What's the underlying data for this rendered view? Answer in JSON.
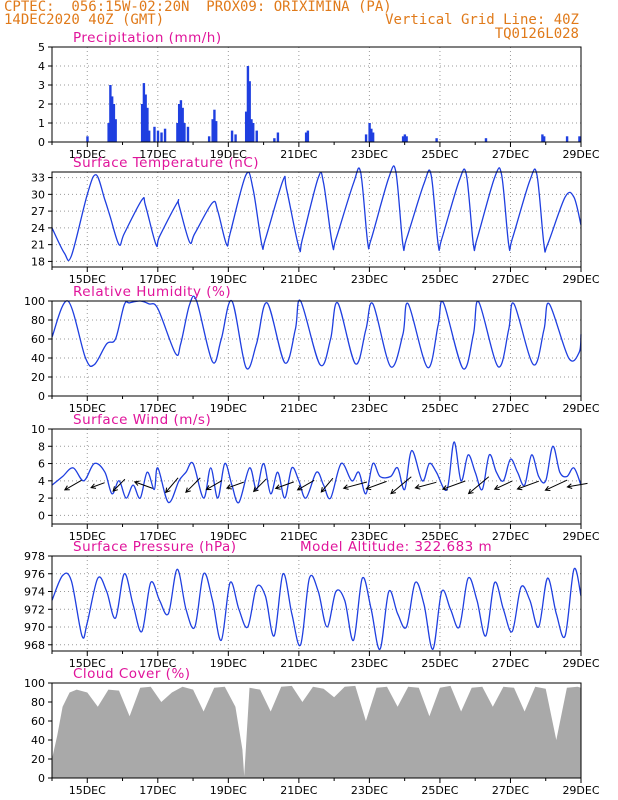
{
  "header": {
    "line1": "CPTEC:  056:15W-02:20N  PROX09: ORIXIMINA (PA)",
    "line2": "14DEC2020 40Z (GMT)",
    "right2": "Vertical Grid Line: 40Z",
    "right3": "TQ0126L028"
  },
  "colors": {
    "header": "#e07a1a",
    "title": "#e0149b",
    "line": "#1f3fe0",
    "cloud": "#a9a9a9",
    "wind_arrow": "#000000"
  },
  "x_axis": {
    "labels": [
      "15DEC",
      "17DEC",
      "19DEC",
      "21DEC",
      "23DEC",
      "25DEC",
      "27DEC",
      "29DEC"
    ],
    "range_days": [
      14.0,
      29.0
    ]
  },
  "chart_data": [
    {
      "id": "precip",
      "type": "bar",
      "title": "Precipitation (mm/h)",
      "ylim": [
        0,
        5
      ],
      "yticks": [
        0,
        1,
        2,
        3,
        4,
        5
      ],
      "grid": true,
      "x_unit": "day of Dec 2020 (14.0 = 14DEC 00Z)",
      "x": [
        15.0,
        15.6,
        15.65,
        15.7,
        15.75,
        15.8,
        16.55,
        16.6,
        16.65,
        16.7,
        16.75,
        16.9,
        17.0,
        17.1,
        17.2,
        17.55,
        17.6,
        17.65,
        17.7,
        17.75,
        17.85,
        18.45,
        18.55,
        18.6,
        18.65,
        19.1,
        19.2,
        19.5,
        19.55,
        19.6,
        19.65,
        19.7,
        19.8,
        20.3,
        20.4,
        21.2,
        21.25,
        22.9,
        23.0,
        23.05,
        23.1,
        23.95,
        24.0,
        24.05,
        24.9,
        26.3,
        27.9,
        27.95,
        28.6,
        28.95
      ],
      "values": [
        0.3,
        1.0,
        3.0,
        2.4,
        2.0,
        1.2,
        2.0,
        3.1,
        2.5,
        1.8,
        0.6,
        0.8,
        0.6,
        0.5,
        0.7,
        1.0,
        2.0,
        2.2,
        1.8,
        1.0,
        0.8,
        0.3,
        1.2,
        1.7,
        1.1,
        0.6,
        0.4,
        1.6,
        4.0,
        3.2,
        1.2,
        1.0,
        0.6,
        0.2,
        0.5,
        0.5,
        0.6,
        0.4,
        1.0,
        0.7,
        0.5,
        0.3,
        0.4,
        0.3,
        0.2,
        0.2,
        0.4,
        0.3,
        0.3,
        0.3
      ]
    },
    {
      "id": "temp",
      "type": "line",
      "title": "Surface Temperature (nC)",
      "ylim": [
        17,
        34
      ],
      "yticks": [
        18,
        21,
        24,
        27,
        30,
        33
      ],
      "grid": true,
      "x": [
        14.0,
        14.35,
        14.55,
        15.0,
        15.25,
        15.5,
        15.65,
        15.9,
        16.05,
        16.55,
        16.65,
        16.95,
        17.05,
        17.55,
        17.6,
        17.9,
        18.05,
        18.55,
        18.7,
        18.95,
        19.05,
        19.5,
        19.7,
        19.95,
        20.05,
        20.55,
        20.65,
        21.0,
        21.1,
        21.55,
        21.7,
        21.95,
        22.05,
        22.55,
        22.75,
        22.95,
        23.05,
        23.55,
        23.75,
        23.95,
        24.05,
        24.55,
        24.75,
        24.95,
        25.05,
        25.55,
        25.75,
        25.95,
        26.05,
        26.55,
        26.75,
        26.95,
        27.05,
        27.55,
        27.75,
        27.95,
        28.05,
        28.55,
        28.8,
        29.0
      ],
      "values": [
        24,
        19.5,
        19,
        30,
        33.5,
        29,
        26,
        21,
        23,
        29,
        28,
        21,
        22.5,
        28.5,
        28,
        21.5,
        23,
        28.5,
        27,
        21,
        23,
        33.5,
        31,
        21,
        22,
        32.5,
        31,
        20.5,
        22,
        33,
        32,
        21,
        22,
        32,
        34,
        21.5,
        22,
        33,
        34,
        21,
        22,
        32,
        33.5,
        21,
        22,
        32.5,
        33.5,
        21,
        22,
        33,
        33.5,
        21,
        22,
        32.5,
        33.5,
        21,
        21,
        29.5,
        29.5,
        24.5
      ]
    },
    {
      "id": "rh",
      "type": "line",
      "title": "Relative Humidity (%)",
      "ylim": [
        0,
        100
      ],
      "yticks": [
        0,
        20,
        40,
        60,
        80,
        100
      ],
      "grid": true,
      "x": [
        14.0,
        14.45,
        14.95,
        15.2,
        15.55,
        15.8,
        16.05,
        16.2,
        16.5,
        16.75,
        17.0,
        17.5,
        17.65,
        17.9,
        18.1,
        18.55,
        18.8,
        19.1,
        19.5,
        19.8,
        20.1,
        20.6,
        20.9,
        21.05,
        21.6,
        21.9,
        22.1,
        22.6,
        22.9,
        23.1,
        23.6,
        23.95,
        24.1,
        24.65,
        24.95,
        25.1,
        25.65,
        25.95,
        26.1,
        26.65,
        26.95,
        27.1,
        27.65,
        27.95,
        28.1,
        28.65,
        28.95,
        29.0
      ],
      "values": [
        62,
        100,
        40,
        33,
        55,
        60,
        96,
        98,
        100,
        97,
        92,
        45,
        55,
        96,
        100,
        36,
        60,
        100,
        30,
        55,
        98,
        35,
        70,
        100,
        33,
        60,
        98,
        34,
        70,
        97,
        31,
        65,
        97,
        30,
        75,
        98,
        29,
        65,
        99,
        31,
        70,
        97,
        33,
        70,
        97,
        40,
        46,
        65
      ]
    },
    {
      "id": "wind",
      "type": "line",
      "title": "Surface Wind (m/s)",
      "ylim": [
        -1,
        10
      ],
      "yticks": [
        0,
        2,
        4,
        6,
        8,
        10
      ],
      "grid": true,
      "x": [
        14.0,
        14.3,
        14.6,
        14.9,
        15.2,
        15.5,
        15.7,
        15.9,
        16.1,
        16.3,
        16.5,
        16.7,
        16.9,
        17.0,
        17.3,
        17.6,
        17.8,
        18.0,
        18.3,
        18.5,
        18.7,
        18.9,
        19.1,
        19.3,
        19.6,
        19.8,
        20.0,
        20.2,
        20.4,
        20.6,
        20.8,
        21.0,
        21.2,
        21.5,
        21.7,
        21.9,
        22.2,
        22.5,
        22.7,
        22.9,
        23.1,
        23.3,
        23.6,
        23.8,
        24.0,
        24.2,
        24.5,
        24.7,
        24.9,
        25.2,
        25.4,
        25.6,
        25.8,
        26.0,
        26.2,
        26.4,
        26.6,
        26.8,
        27.0,
        27.2,
        27.4,
        27.6,
        27.8,
        28.0,
        28.2,
        28.4,
        28.6,
        28.8,
        29.0
      ],
      "values": [
        3.5,
        4.5,
        5.5,
        4,
        6,
        5,
        2.5,
        4,
        2,
        3.5,
        2,
        5,
        3,
        5.5,
        1.5,
        4,
        5,
        6,
        2,
        5.5,
        2,
        6,
        3.5,
        1.5,
        5.5,
        3,
        6,
        2.5,
        5,
        2,
        5.5,
        4,
        2,
        5,
        3.5,
        2,
        6,
        4,
        5,
        2.5,
        6,
        4.5,
        4.5,
        5.5,
        3,
        7.5,
        4,
        6,
        5,
        3,
        8.5,
        4,
        7,
        5,
        3,
        7,
        5,
        4,
        6.5,
        5,
        3.5,
        7,
        4.5,
        4,
        8,
        5,
        4.5,
        5.5,
        3.5
      ]
    },
    {
      "id": "pres",
      "type": "line",
      "title": "Surface Pressure (hPa)",
      "subtitle": "Model Altitude: 322.683 m",
      "ylim": [
        967.3,
        978
      ],
      "yticks": [
        968,
        970,
        972,
        974,
        976,
        978
      ],
      "grid": true,
      "x": [
        14.0,
        14.3,
        14.55,
        14.85,
        15.0,
        15.3,
        15.55,
        15.8,
        16.05,
        16.3,
        16.55,
        16.8,
        17.05,
        17.3,
        17.55,
        17.8,
        18.05,
        18.3,
        18.55,
        18.8,
        19.05,
        19.3,
        19.55,
        19.8,
        20.05,
        20.3,
        20.55,
        20.8,
        21.05,
        21.3,
        21.55,
        21.8,
        22.05,
        22.3,
        22.55,
        22.8,
        23.05,
        23.3,
        23.55,
        23.8,
        24.05,
        24.3,
        24.55,
        24.8,
        25.05,
        25.3,
        25.55,
        25.8,
        26.05,
        26.3,
        26.55,
        26.8,
        27.05,
        27.3,
        27.55,
        27.8,
        28.05,
        28.3,
        28.55,
        28.8,
        29.0
      ],
      "values": [
        973,
        975.8,
        975.2,
        969,
        970.5,
        975.5,
        974,
        971,
        976,
        972.5,
        969.5,
        975,
        973,
        971.5,
        976.5,
        972,
        970,
        976,
        973,
        968.5,
        975,
        972,
        970,
        974.5,
        973.5,
        969,
        976,
        971.5,
        968,
        975.5,
        974,
        970,
        974,
        973,
        968.5,
        975.5,
        972,
        967.5,
        974,
        971.5,
        970,
        975,
        972.5,
        967.5,
        974,
        972,
        970,
        975.5,
        973,
        969,
        975,
        972,
        969.5,
        974.5,
        973,
        970,
        975.5,
        971.5,
        969,
        976.5,
        973.5
      ]
    },
    {
      "id": "cloud",
      "type": "area",
      "title": "Cloud Cover (%)",
      "ylim": [
        0,
        100
      ],
      "yticks": [
        0,
        20,
        40,
        60,
        80,
        100
      ],
      "grid": false,
      "x": [
        14.0,
        14.15,
        14.3,
        14.5,
        14.7,
        15.0,
        15.3,
        15.6,
        15.9,
        16.2,
        16.5,
        16.8,
        17.1,
        17.4,
        17.7,
        18.0,
        18.3,
        18.6,
        18.9,
        19.2,
        19.4,
        19.45,
        19.6,
        19.9,
        20.2,
        20.5,
        20.8,
        21.1,
        21.4,
        21.7,
        22.0,
        22.3,
        22.6,
        22.9,
        23.2,
        23.5,
        23.8,
        24.1,
        24.4,
        24.7,
        25.0,
        25.3,
        25.6,
        25.9,
        26.2,
        26.5,
        26.8,
        27.1,
        27.4,
        27.7,
        28.0,
        28.3,
        28.6,
        28.9,
        29.0
      ],
      "values": [
        20,
        45,
        75,
        90,
        93,
        90,
        75,
        93,
        92,
        65,
        95,
        96,
        80,
        90,
        96,
        93,
        70,
        95,
        96,
        75,
        30,
        2,
        95,
        93,
        70,
        96,
        97,
        80,
        96,
        94,
        85,
        96,
        97,
        60,
        95,
        96,
        75,
        96,
        95,
        65,
        95,
        97,
        70,
        95,
        96,
        75,
        96,
        95,
        70,
        96,
        94,
        40,
        95,
        96,
        95
      ]
    }
  ],
  "wind_arrows": {
    "x": [
      14.6,
      15.3,
      15.9,
      16.6,
      17.4,
      18.0,
      18.6,
      19.2,
      19.9,
      20.6,
      21.2,
      21.8,
      22.6,
      23.2,
      23.9,
      24.6,
      25.4,
      26.1,
      26.8,
      27.5,
      28.3,
      28.9
    ],
    "dir_deg": [
      210,
      200,
      225,
      160,
      230,
      225,
      210,
      200,
      225,
      200,
      210,
      230,
      195,
      200,
      220,
      195,
      200,
      220,
      205,
      200,
      205,
      190
    ],
    "len": [
      1.6,
      1.2,
      1.4,
      1.6,
      1.6,
      1.7,
      1.5,
      1.5,
      1.5,
      1.6,
      1.6,
      1.5,
      2.0,
      1.8,
      2.2,
      1.8,
      2.0,
      2.2,
      1.6,
      1.9,
      2.0,
      1.7
    ]
  }
}
